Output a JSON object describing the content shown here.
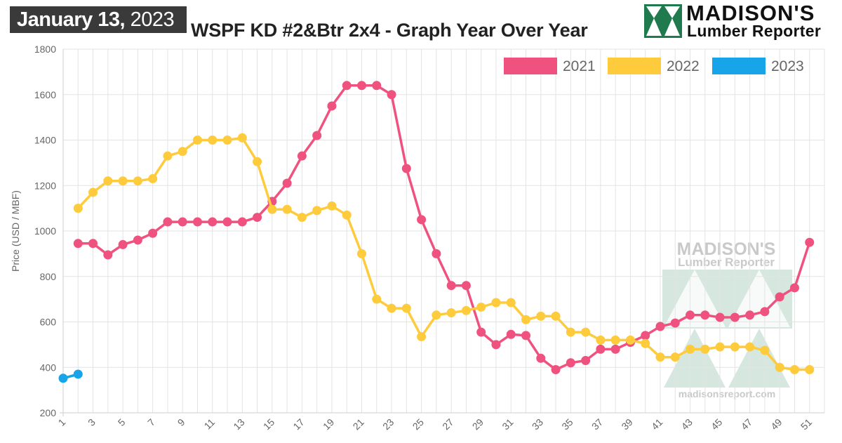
{
  "header": {
    "date_main": "January 13,",
    "date_year": " 2023",
    "title": "WSPF KD #2&Btr 2x4 - Graph Year Over Year"
  },
  "logo": {
    "line1": "MADISON'S",
    "line2": "Lumber Reporter",
    "watermark_line1": "MADISON'S",
    "watermark_line2": "Lumber Reporter",
    "watermark_url": "madisonsreport.com"
  },
  "colors": {
    "series_2021": "#f0527f",
    "series_2022": "#fdcb3c",
    "series_2023": "#17a4e8",
    "logo_green": "#1f7a4d"
  },
  "chart_data": {
    "type": "line",
    "title": "WSPF KD #2&Btr 2x4 - Graph Year Over Year",
    "xlabel": "",
    "ylabel": "Price (USD / MBF)",
    "xlim": [
      1,
      52
    ],
    "ylim": [
      200,
      1800
    ],
    "y_ticks": [
      200,
      400,
      600,
      800,
      1000,
      1200,
      1400,
      1600,
      1800
    ],
    "x_tick_labels": [
      1,
      3,
      5,
      7,
      9,
      11,
      13,
      15,
      17,
      19,
      21,
      23,
      25,
      27,
      29,
      31,
      33,
      35,
      37,
      39,
      41,
      43,
      45,
      47,
      49,
      51
    ],
    "grid": true,
    "legend_position": "top-right",
    "series": [
      {
        "name": "2021",
        "color": "#f0527f",
        "x": [
          2,
          3,
          4,
          5,
          6,
          7,
          8,
          9,
          10,
          11,
          12,
          13,
          14,
          15,
          16,
          17,
          18,
          19,
          20,
          21,
          22,
          23,
          24,
          25,
          26,
          27,
          28,
          29,
          30,
          31,
          32,
          33,
          34,
          35,
          36,
          37,
          38,
          39,
          40,
          41,
          42,
          43,
          44,
          45,
          46,
          47,
          48,
          49,
          50,
          51
        ],
        "values": [
          945,
          945,
          895,
          940,
          960,
          990,
          1040,
          1040,
          1040,
          1040,
          1040,
          1040,
          1060,
          1130,
          1210,
          1330,
          1420,
          1550,
          1640,
          1640,
          1640,
          1600,
          1275,
          1050,
          900,
          760,
          760,
          555,
          500,
          545,
          540,
          440,
          390,
          420,
          430,
          480,
          480,
          510,
          540,
          580,
          595,
          630,
          630,
          620,
          620,
          630,
          645,
          710,
          750,
          950
        ]
      },
      {
        "name": "2022",
        "color": "#fdcb3c",
        "x": [
          2,
          3,
          4,
          5,
          6,
          7,
          8,
          9,
          10,
          11,
          12,
          13,
          14,
          15,
          16,
          17,
          18,
          19,
          20,
          21,
          22,
          23,
          24,
          25,
          26,
          27,
          28,
          29,
          30,
          31,
          32,
          33,
          34,
          35,
          36,
          37,
          38,
          39,
          40,
          41,
          42,
          43,
          44,
          45,
          46,
          47,
          48,
          49,
          50,
          51
        ],
        "values": [
          1100,
          1170,
          1220,
          1220,
          1220,
          1230,
          1330,
          1350,
          1400,
          1400,
          1400,
          1410,
          1305,
          1095,
          1095,
          1060,
          1090,
          1110,
          1070,
          900,
          700,
          660,
          660,
          535,
          630,
          640,
          650,
          665,
          685,
          685,
          610,
          625,
          625,
          555,
          555,
          520,
          520,
          520,
          505,
          445,
          445,
          480,
          480,
          490,
          490,
          490,
          475,
          400,
          390,
          390
        ]
      },
      {
        "name": "2023",
        "color": "#17a4e8",
        "x": [
          1,
          2
        ],
        "values": [
          352,
          370
        ]
      }
    ]
  }
}
